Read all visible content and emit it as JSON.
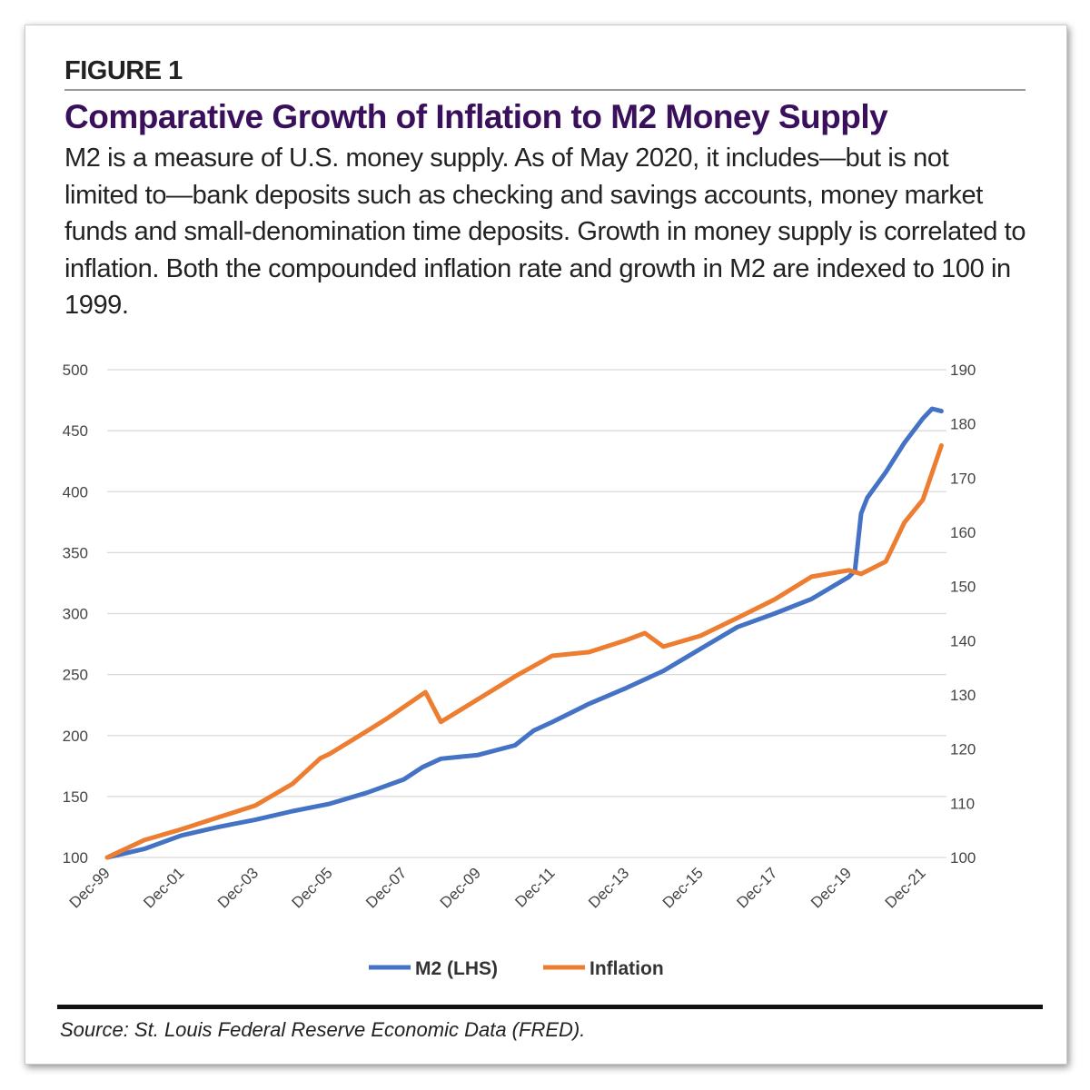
{
  "figure_label": "FIGURE 1",
  "title": "Comparative Growth of Inflation to M2 Money Supply",
  "description": "M2 is a measure of U.S. money supply. As of May 2020, it includes—but is not limited to—bank deposits such as checking and savings accounts, money market funds and small-denomination time deposits. Growth in money supply is correlated to inflation. Both the compounded inflation rate and growth in M2 are indexed to 100 in 1999.",
  "source": "Source: St. Louis Federal Reserve Economic Data (FRED).",
  "colors": {
    "m2": "#4472c4",
    "inflation": "#ed7d31",
    "title": "#3a0f5c"
  },
  "chart_data": {
    "type": "line",
    "title": "",
    "xlabel": "",
    "ylabel": "",
    "x_ticks": [
      "Dec-99",
      "Dec-01",
      "Dec-03",
      "Dec-05",
      "Dec-07",
      "Dec-09",
      "Dec-11",
      "Dec-13",
      "Dec-15",
      "Dec-17",
      "Dec-19",
      "Dec-21"
    ],
    "y_left": {
      "range": [
        100,
        500
      ],
      "ticks": [
        100,
        150,
        200,
        250,
        300,
        350,
        400,
        450,
        500
      ]
    },
    "y_right": {
      "range": [
        100,
        190
      ],
      "ticks": [
        100,
        110,
        120,
        130,
        140,
        150,
        160,
        170,
        180,
        190
      ]
    },
    "grid": true,
    "legend": "bottom",
    "series": [
      {
        "name": "M2 (LHS)",
        "axis": "left",
        "points": [
          [
            "1999-12",
            100
          ],
          [
            "2000-12",
            107
          ],
          [
            "2001-12",
            118
          ],
          [
            "2002-12",
            125
          ],
          [
            "2003-12",
            131
          ],
          [
            "2004-12",
            138
          ],
          [
            "2005-12",
            144
          ],
          [
            "2006-12",
            153
          ],
          [
            "2007-12",
            164
          ],
          [
            "2008-06",
            174
          ],
          [
            "2008-12",
            181
          ],
          [
            "2009-12",
            184
          ],
          [
            "2010-12",
            192
          ],
          [
            "2011-06",
            204
          ],
          [
            "2011-12",
            211
          ],
          [
            "2012-12",
            226
          ],
          [
            "2013-12",
            239
          ],
          [
            "2014-12",
            253
          ],
          [
            "2015-12",
            271
          ],
          [
            "2016-12",
            289
          ],
          [
            "2017-12",
            300
          ],
          [
            "2018-12",
            312
          ],
          [
            "2019-12",
            330
          ],
          [
            "2020-02",
            335
          ],
          [
            "2020-04",
            382
          ],
          [
            "2020-06",
            395
          ],
          [
            "2020-12",
            416
          ],
          [
            "2021-06",
            440
          ],
          [
            "2021-12",
            460
          ],
          [
            "2022-03",
            468
          ],
          [
            "2022-06",
            466
          ]
        ]
      },
      {
        "name": "Inflation",
        "axis": "right",
        "points": [
          [
            "1999-12",
            100
          ],
          [
            "2000-12",
            103.2
          ],
          [
            "2001-12",
            105.2
          ],
          [
            "2002-12",
            107.4
          ],
          [
            "2003-12",
            109.6
          ],
          [
            "2004-12",
            113.6
          ],
          [
            "2005-09",
            118.3
          ],
          [
            "2005-12",
            119.1
          ],
          [
            "2006-12",
            123.3
          ],
          [
            "2007-07",
            125.8
          ],
          [
            "2008-07",
            130.5
          ],
          [
            "2008-12",
            125
          ],
          [
            "2009-12",
            129.2
          ],
          [
            "2010-12",
            133.4
          ],
          [
            "2011-12",
            137.2
          ],
          [
            "2012-12",
            137.9
          ],
          [
            "2013-12",
            140.1
          ],
          [
            "2014-06",
            141.4
          ],
          [
            "2014-12",
            138.9
          ],
          [
            "2015-12",
            140.9
          ],
          [
            "2016-12",
            144.2
          ],
          [
            "2017-12",
            147.6
          ],
          [
            "2018-12",
            151.8
          ],
          [
            "2019-12",
            153
          ],
          [
            "2020-04",
            152.3
          ],
          [
            "2020-12",
            154.6
          ],
          [
            "2021-06",
            161.8
          ],
          [
            "2021-12",
            166
          ],
          [
            "2022-06",
            176
          ]
        ]
      }
    ]
  }
}
